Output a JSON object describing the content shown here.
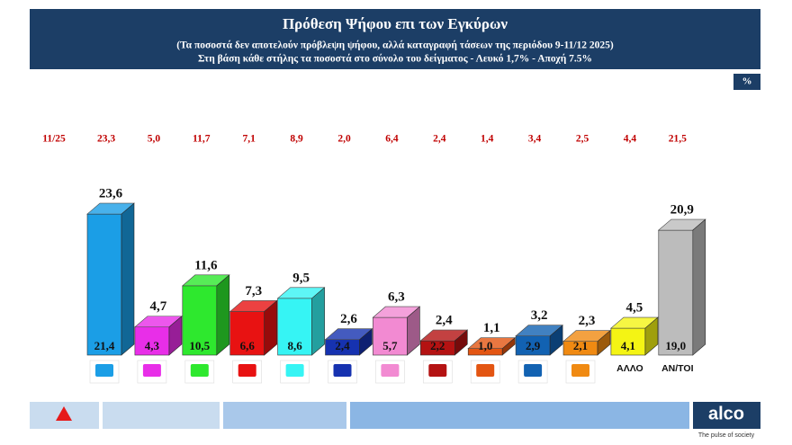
{
  "chart_data": {
    "type": "bar3d",
    "title": "Πρόθεση Ψήφου επι των Εγκύρων",
    "subtitle": [
      "(Τα ποσοστά δεν αποτελούν πρόβλεψη ψήφου, αλλά καταγραφή τάσεων της περιόδου  9-11/12 2025)",
      "Στη βάση κάθε στήλης τα ποσοστά στο σύνολο του δείγματος - Λευκό 1,7% - Αποχή 7.5%"
    ],
    "unit_badge": "%",
    "brand": "alco",
    "tagline": "The pulse of society",
    "categories": [
      null,
      null,
      null,
      null,
      null,
      null,
      null,
      null,
      null,
      null,
      null,
      "ΑΛΛΟ",
      "ΑΝ/ΤΟΙ"
    ],
    "colors": [
      "#1b9ee6",
      "#e82ee8",
      "#2ee82e",
      "#e81212",
      "#36f4f4",
      "#1632b0",
      "#f28ad2",
      "#b41212",
      "#e35512",
      "#1262b2",
      "#f08a12",
      "#f4f414",
      "#bcbcbc"
    ],
    "series": [
      {
        "values": [
          23.6,
          4.7,
          11.6,
          7.3,
          9.5,
          2.6,
          6.3,
          2.4,
          1.1,
          3.2,
          2.3,
          4.5,
          20.9
        ],
        "value_labels": [
          "23,6",
          "4,7",
          "11,6",
          "7,3",
          "9,5",
          "2,6",
          "6,3",
          "2,4",
          "1,1",
          "3,2",
          "2,3",
          "4,5",
          "20,9"
        ]
      },
      {
        "values": [
          21.4,
          4.3,
          10.5,
          6.6,
          8.6,
          2.4,
          5.7,
          2.2,
          1.0,
          2.9,
          2.1,
          4.1,
          19.0
        ],
        "value_labels": [
          "21,4",
          "4,3",
          "10,5",
          "6,6",
          "8,6",
          "2,4",
          "5,7",
          "2,2",
          "1,0",
          "2,9",
          "2,1",
          "4,1",
          "19,0"
        ]
      },
      {
        "name": "11/25",
        "values": [
          23.3,
          5.0,
          11.7,
          7.1,
          8.9,
          2.0,
          6.4,
          2.4,
          1.4,
          3.4,
          2.5,
          4.4,
          21.5
        ],
        "value_labels": [
          "23,3",
          "5,0",
          "11,7",
          "7,1",
          "8,9",
          "2,0",
          "6,4",
          "2,4",
          "1,4",
          "3,4",
          "2,5",
          "4,4",
          "21,5"
        ]
      }
    ]
  }
}
